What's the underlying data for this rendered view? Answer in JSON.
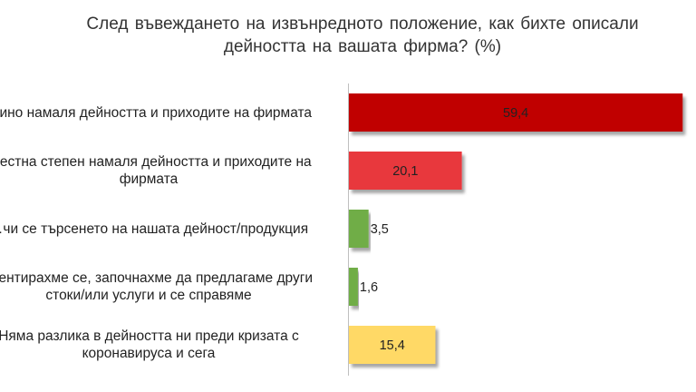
{
  "chart_data": {
    "type": "bar",
    "orientation": "horizontal",
    "title_lines": [
      "След въвеждането на извънредното положение, как бихте описали",
      "дейността на вашата фирма? (%)"
    ],
    "categories": [
      [
        "…ино намаля дейността и приходите на фирмата"
      ],
      [
        "…естна степен намаля дейността и приходите на",
        "фирмата"
      ],
      [
        "…чи се търсенето на нашата дейност/продукция"
      ],
      [
        "…ентирахме се, започнахме да предлагаме други",
        "стоки/или услуги и се справяме"
      ],
      [
        "Няма разлика в дейността ни преди кризата с",
        "коронавируса и сега"
      ]
    ],
    "values": [
      59.4,
      20.1,
      3.5,
      1.6,
      15.4
    ],
    "value_labels": [
      "59,4",
      "20,1",
      "3,5",
      "1,6",
      "15,4"
    ],
    "colors": [
      "#c00000",
      "#e8373c",
      "#70ad47",
      "#70ad47",
      "#ffd966"
    ],
    "xlim": [
      0,
      60
    ],
    "grid": false,
    "legend": "none"
  }
}
